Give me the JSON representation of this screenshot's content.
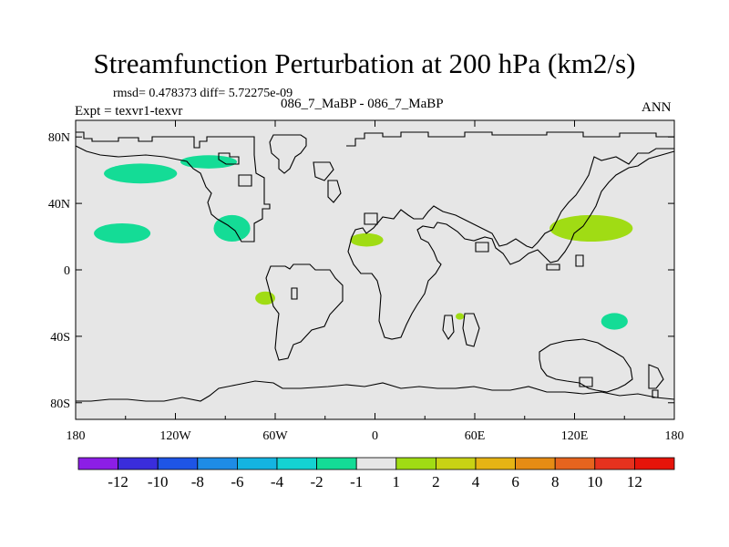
{
  "chart_data": {
    "type": "contour-map",
    "title": "Streamfunction Perturbation at 200 hPa (km2/s)",
    "stats_text": "rmsd= 0.478373 diff= 5.72275e-09",
    "case_text": "086_7_MaBP - 086_7_MaBP",
    "experiment_text": "Expt = texvr1-texvr",
    "season": "ANN",
    "x_ticks": [
      "180",
      "120W",
      "60W",
      "0",
      "60E",
      "120E",
      "180"
    ],
    "x_values": [
      -180,
      -120,
      -60,
      0,
      60,
      120,
      180
    ],
    "y_ticks": [
      "80N",
      "40N",
      "0",
      "40S",
      "80S"
    ],
    "y_values": [
      80,
      40,
      0,
      -40,
      -80
    ],
    "xlim": [
      -180,
      180
    ],
    "ylim": [
      -90,
      90
    ],
    "colorbar": {
      "labels": [
        "-12",
        "-10",
        "-8",
        "-6",
        "-4",
        "-2",
        "-1",
        "1",
        "2",
        "4",
        "6",
        "8",
        "10",
        "12"
      ],
      "colors": [
        "#8c1ee6",
        "#3a2ddc",
        "#1e55e6",
        "#1e8ce6",
        "#14b4e1",
        "#14d2d2",
        "#14dc96",
        "#e6e6e6",
        "#a0dc14",
        "#c8d214",
        "#e6b414",
        "#e68c14",
        "#e6641e",
        "#e6321e",
        "#e6140a"
      ]
    },
    "anomalies": [
      {
        "lon": -141,
        "lat": 58,
        "rlon": 22,
        "rlat": 6,
        "value": -1.5,
        "color": "#14dc96"
      },
      {
        "lon": -100,
        "lat": 65,
        "rlon": 17,
        "rlat": 4,
        "value": -1.5,
        "color": "#14dc96"
      },
      {
        "lon": -152,
        "lat": 22,
        "rlon": 17,
        "rlat": 6,
        "value": -1.5,
        "color": "#14dc96"
      },
      {
        "lon": -86,
        "lat": 25,
        "rlon": 11,
        "rlat": 8,
        "value": -1.5,
        "color": "#14dc96"
      },
      {
        "lon": -66,
        "lat": -17,
        "rlon": 6,
        "rlat": 4,
        "value": 1.5,
        "color": "#a0dc14"
      },
      {
        "lon": -5,
        "lat": 18,
        "rlon": 10,
        "rlat": 4,
        "value": 1.5,
        "color": "#a0dc14"
      },
      {
        "lon": 51,
        "lat": -28,
        "rlon": 2.5,
        "rlat": 2,
        "value": 1.5,
        "color": "#a0dc14"
      },
      {
        "lon": 130,
        "lat": 25,
        "rlon": 25,
        "rlat": 8,
        "value": 1.5,
        "color": "#a0dc14"
      },
      {
        "lon": 144,
        "lat": -31,
        "rlon": 8,
        "rlat": 5,
        "value": -1.5,
        "color": "#14dc96"
      }
    ]
  }
}
